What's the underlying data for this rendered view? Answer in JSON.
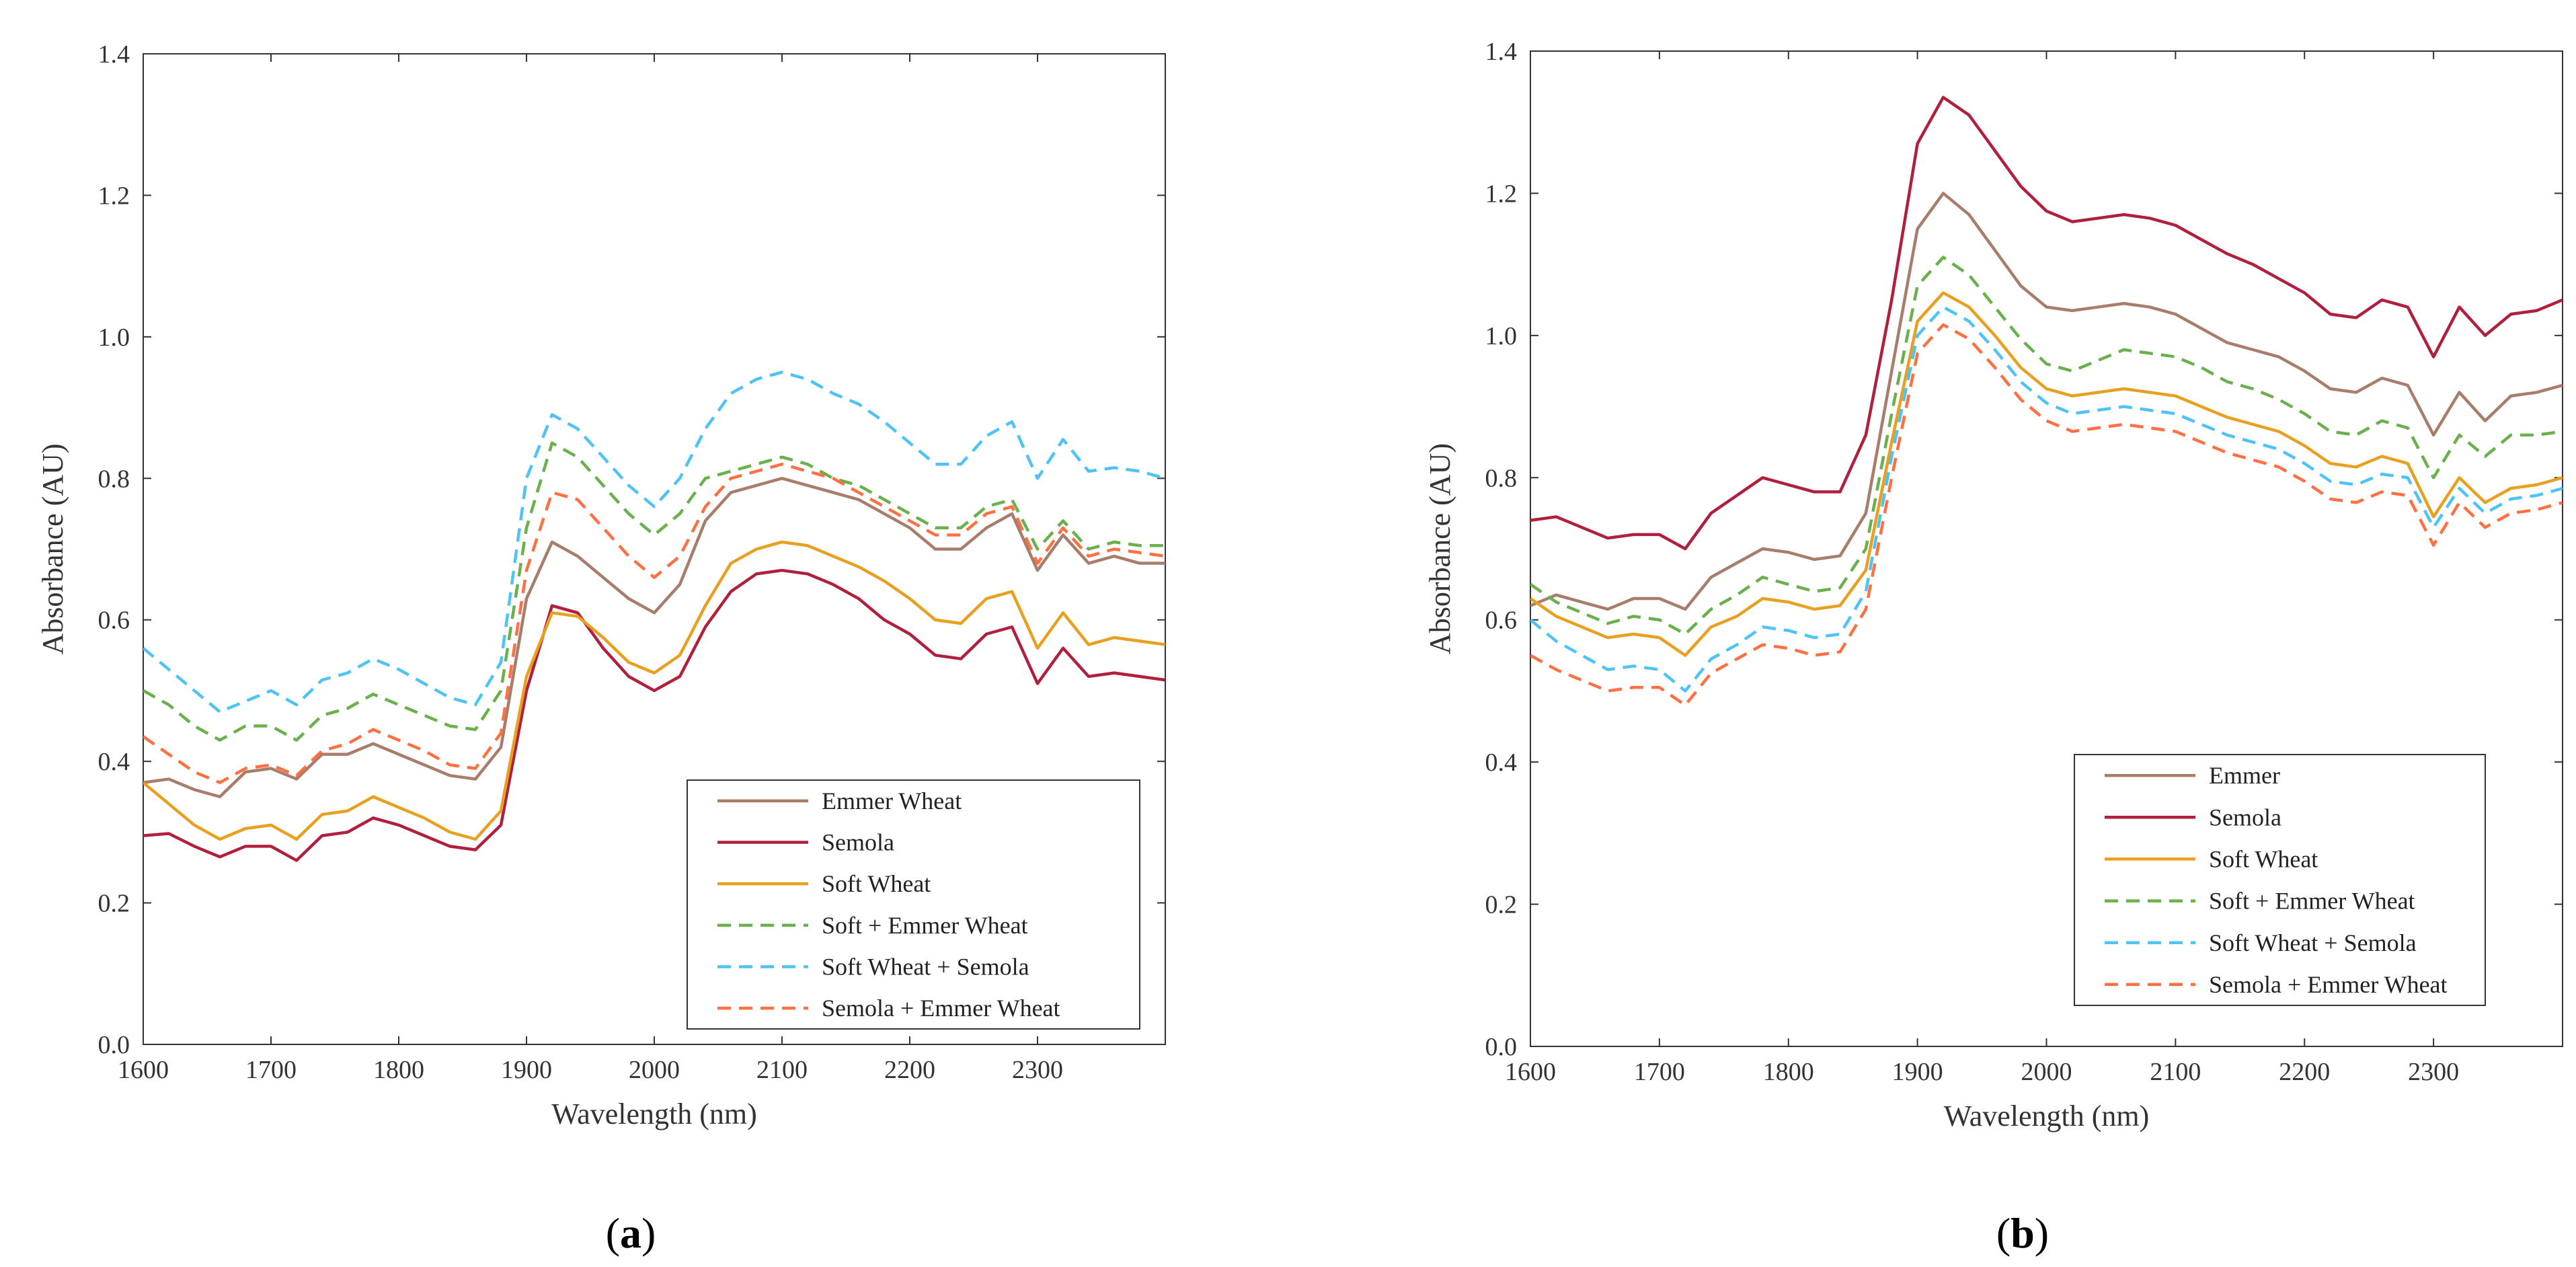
{
  "panel_labels": [
    "(a)",
    "(b)"
  ],
  "colors": {
    "emmer": "#a87d6c",
    "semola": "#b0203d",
    "soft": "#e8a020",
    "soft_emmer": "#6ab04c",
    "soft_semola": "#4fc3f7",
    "semola_emmer": "#ff7043"
  },
  "chart_data": [
    {
      "type": "line",
      "panel": "(a)",
      "xlabel": "Wavelength (nm)",
      "ylabel": "Absorbance (AU)",
      "xlim": [
        1600,
        2400
      ],
      "ylim": [
        0,
        1.4
      ],
      "xticks": [
        "1600",
        "1700",
        "1800",
        "1900",
        "2000",
        "2100",
        "2200",
        "2300"
      ],
      "xtick_values": [
        1600,
        1700,
        1800,
        1900,
        2000,
        2100,
        2200,
        2300
      ],
      "yticks": [
        "0.0",
        "0.2",
        "0.4",
        "0.6",
        "0.8",
        "1.0",
        "1.2",
        "1.4"
      ],
      "ytick_values": [
        0,
        0.2,
        0.4,
        0.6,
        0.8,
        1.0,
        1.2,
        1.4
      ],
      "legend_position": "bottom-right",
      "x": [
        1600,
        1620,
        1640,
        1660,
        1680,
        1700,
        1720,
        1740,
        1760,
        1780,
        1800,
        1820,
        1840,
        1860,
        1880,
        1900,
        1920,
        1940,
        1960,
        1980,
        2000,
        2020,
        2040,
        2060,
        2080,
        2100,
        2120,
        2140,
        2160,
        2180,
        2200,
        2220,
        2240,
        2260,
        2280,
        2300,
        2320,
        2340,
        2360,
        2380,
        2400
      ],
      "series": [
        {
          "name": "Emmer Wheat",
          "color_key": "emmer",
          "dash": false,
          "values": [
            0.37,
            0.375,
            0.36,
            0.35,
            0.385,
            0.39,
            0.375,
            0.41,
            0.41,
            0.425,
            0.41,
            0.395,
            0.38,
            0.375,
            0.42,
            0.63,
            0.71,
            0.69,
            0.66,
            0.63,
            0.61,
            0.65,
            0.74,
            0.78,
            0.79,
            0.8,
            0.79,
            0.78,
            0.77,
            0.75,
            0.73,
            0.7,
            0.7,
            0.73,
            0.75,
            0.67,
            0.72,
            0.68,
            0.69,
            0.68,
            0.68
          ]
        },
        {
          "name": "Semola",
          "color_key": "semola",
          "dash": false,
          "values": [
            0.295,
            0.298,
            0.28,
            0.265,
            0.28,
            0.28,
            0.26,
            0.295,
            0.3,
            0.32,
            0.31,
            0.295,
            0.28,
            0.275,
            0.31,
            0.5,
            0.62,
            0.61,
            0.56,
            0.52,
            0.5,
            0.52,
            0.59,
            0.64,
            0.665,
            0.67,
            0.665,
            0.65,
            0.63,
            0.6,
            0.58,
            0.55,
            0.545,
            0.58,
            0.59,
            0.51,
            0.56,
            0.52,
            0.525,
            0.52,
            0.515
          ]
        },
        {
          "name": "Soft Wheat",
          "color_key": "soft",
          "dash": false,
          "values": [
            0.37,
            0.34,
            0.31,
            0.29,
            0.305,
            0.31,
            0.29,
            0.325,
            0.33,
            0.35,
            0.335,
            0.32,
            0.3,
            0.29,
            0.33,
            0.52,
            0.61,
            0.605,
            0.575,
            0.54,
            0.525,
            0.55,
            0.62,
            0.68,
            0.7,
            0.71,
            0.705,
            0.69,
            0.675,
            0.655,
            0.63,
            0.6,
            0.595,
            0.63,
            0.64,
            0.56,
            0.61,
            0.565,
            0.575,
            0.57,
            0.565
          ]
        },
        {
          "name": "Soft + Emmer Wheat",
          "color_key": "soft_emmer",
          "dash": true,
          "values": [
            0.5,
            0.48,
            0.45,
            0.43,
            0.45,
            0.45,
            0.43,
            0.465,
            0.475,
            0.495,
            0.48,
            0.465,
            0.45,
            0.445,
            0.5,
            0.73,
            0.85,
            0.83,
            0.79,
            0.75,
            0.72,
            0.75,
            0.8,
            0.81,
            0.82,
            0.83,
            0.82,
            0.8,
            0.79,
            0.77,
            0.75,
            0.73,
            0.73,
            0.76,
            0.77,
            0.7,
            0.74,
            0.7,
            0.71,
            0.705,
            0.705
          ]
        },
        {
          "name": "Soft Wheat + Semola",
          "color_key": "soft_semola",
          "dash": true,
          "values": [
            0.56,
            0.53,
            0.5,
            0.47,
            0.485,
            0.5,
            0.48,
            0.515,
            0.525,
            0.545,
            0.53,
            0.51,
            0.49,
            0.48,
            0.54,
            0.8,
            0.89,
            0.87,
            0.83,
            0.79,
            0.76,
            0.8,
            0.87,
            0.92,
            0.94,
            0.95,
            0.94,
            0.92,
            0.905,
            0.88,
            0.85,
            0.82,
            0.82,
            0.86,
            0.88,
            0.8,
            0.855,
            0.81,
            0.815,
            0.81,
            0.8
          ]
        },
        {
          "name": "Semola + Emmer Wheat",
          "color_key": "semola_emmer",
          "dash": true,
          "values": [
            0.435,
            0.41,
            0.385,
            0.37,
            0.39,
            0.395,
            0.38,
            0.415,
            0.425,
            0.445,
            0.43,
            0.415,
            0.395,
            0.39,
            0.44,
            0.67,
            0.78,
            0.77,
            0.73,
            0.69,
            0.66,
            0.69,
            0.76,
            0.8,
            0.81,
            0.82,
            0.81,
            0.8,
            0.78,
            0.76,
            0.74,
            0.72,
            0.72,
            0.75,
            0.76,
            0.68,
            0.73,
            0.69,
            0.7,
            0.695,
            0.69
          ]
        }
      ]
    },
    {
      "type": "line",
      "panel": "(b)",
      "xlabel": "Wavelength (nm)",
      "ylabel": "Absorbance (AU)",
      "xlim": [
        1600,
        2400
      ],
      "ylim": [
        0,
        1.4
      ],
      "xticks": [
        "1600",
        "1700",
        "1800",
        "1900",
        "2000",
        "2100",
        "2200",
        "2300"
      ],
      "xtick_values": [
        1600,
        1700,
        1800,
        1900,
        2000,
        2100,
        2200,
        2300
      ],
      "yticks": [
        "0.0",
        "0.2",
        "0.4",
        "0.6",
        "0.8",
        "1.0",
        "1.2",
        "1.4"
      ],
      "ytick_values": [
        0,
        0.2,
        0.4,
        0.6,
        0.8,
        1.0,
        1.2,
        1.4
      ],
      "legend_position": "bottom-right",
      "x": [
        1600,
        1620,
        1640,
        1660,
        1680,
        1700,
        1720,
        1740,
        1760,
        1780,
        1800,
        1820,
        1840,
        1860,
        1880,
        1900,
        1920,
        1940,
        1960,
        1980,
        2000,
        2020,
        2040,
        2060,
        2080,
        2100,
        2120,
        2140,
        2160,
        2180,
        2200,
        2220,
        2240,
        2260,
        2280,
        2300,
        2320,
        2340,
        2360,
        2380,
        2400
      ],
      "series": [
        {
          "name": "Emmer",
          "color_key": "emmer",
          "dash": false,
          "values": [
            0.62,
            0.635,
            0.625,
            0.615,
            0.63,
            0.63,
            0.615,
            0.66,
            0.68,
            0.7,
            0.695,
            0.685,
            0.69,
            0.75,
            0.95,
            1.15,
            1.2,
            1.17,
            1.12,
            1.07,
            1.04,
            1.035,
            1.04,
            1.045,
            1.04,
            1.03,
            1.01,
            0.99,
            0.98,
            0.97,
            0.95,
            0.925,
            0.92,
            0.94,
            0.93,
            0.86,
            0.92,
            0.88,
            0.915,
            0.92,
            0.93
          ]
        },
        {
          "name": "Semola",
          "color_key": "semola",
          "dash": false,
          "values": [
            0.74,
            0.745,
            0.73,
            0.715,
            0.72,
            0.72,
            0.7,
            0.75,
            0.775,
            0.8,
            0.79,
            0.78,
            0.78,
            0.86,
            1.05,
            1.27,
            1.335,
            1.31,
            1.26,
            1.21,
            1.175,
            1.16,
            1.165,
            1.17,
            1.165,
            1.155,
            1.135,
            1.115,
            1.1,
            1.08,
            1.06,
            1.03,
            1.025,
            1.05,
            1.04,
            0.97,
            1.04,
            1.0,
            1.03,
            1.035,
            1.05
          ]
        },
        {
          "name": "Soft Wheat",
          "color_key": "soft",
          "dash": false,
          "values": [
            0.63,
            0.605,
            0.59,
            0.575,
            0.58,
            0.575,
            0.55,
            0.59,
            0.605,
            0.63,
            0.625,
            0.615,
            0.62,
            0.67,
            0.85,
            1.02,
            1.06,
            1.04,
            1.0,
            0.955,
            0.925,
            0.915,
            0.92,
            0.925,
            0.92,
            0.915,
            0.9,
            0.885,
            0.875,
            0.865,
            0.845,
            0.82,
            0.815,
            0.83,
            0.82,
            0.745,
            0.8,
            0.765,
            0.785,
            0.79,
            0.8
          ]
        },
        {
          "name": "Soft + Emmer Wheat",
          "color_key": "soft_emmer",
          "dash": true,
          "values": [
            0.65,
            0.625,
            0.61,
            0.595,
            0.605,
            0.6,
            0.58,
            0.615,
            0.635,
            0.66,
            0.65,
            0.64,
            0.645,
            0.7,
            0.89,
            1.07,
            1.11,
            1.085,
            1.04,
            0.995,
            0.96,
            0.95,
            0.965,
            0.98,
            0.975,
            0.97,
            0.955,
            0.935,
            0.925,
            0.91,
            0.89,
            0.865,
            0.86,
            0.88,
            0.87,
            0.8,
            0.86,
            0.83,
            0.86,
            0.86,
            0.865
          ]
        },
        {
          "name": "Soft Wheat + Semola",
          "color_key": "soft_semola",
          "dash": true,
          "values": [
            0.6,
            0.57,
            0.55,
            0.53,
            0.535,
            0.53,
            0.5,
            0.545,
            0.565,
            0.59,
            0.585,
            0.575,
            0.58,
            0.64,
            0.83,
            1.0,
            1.04,
            1.02,
            0.98,
            0.935,
            0.905,
            0.89,
            0.895,
            0.9,
            0.895,
            0.89,
            0.875,
            0.86,
            0.85,
            0.84,
            0.82,
            0.795,
            0.79,
            0.805,
            0.8,
            0.73,
            0.785,
            0.75,
            0.77,
            0.775,
            0.785
          ]
        },
        {
          "name": "Semola + Emmer Wheat",
          "color_key": "semola_emmer",
          "dash": true,
          "values": [
            0.55,
            0.53,
            0.515,
            0.5,
            0.505,
            0.505,
            0.48,
            0.525,
            0.545,
            0.565,
            0.56,
            0.55,
            0.555,
            0.615,
            0.8,
            0.975,
            1.015,
            0.995,
            0.955,
            0.91,
            0.88,
            0.865,
            0.87,
            0.875,
            0.87,
            0.865,
            0.85,
            0.835,
            0.825,
            0.815,
            0.795,
            0.77,
            0.765,
            0.78,
            0.775,
            0.705,
            0.765,
            0.73,
            0.75,
            0.755,
            0.765
          ]
        }
      ]
    }
  ]
}
